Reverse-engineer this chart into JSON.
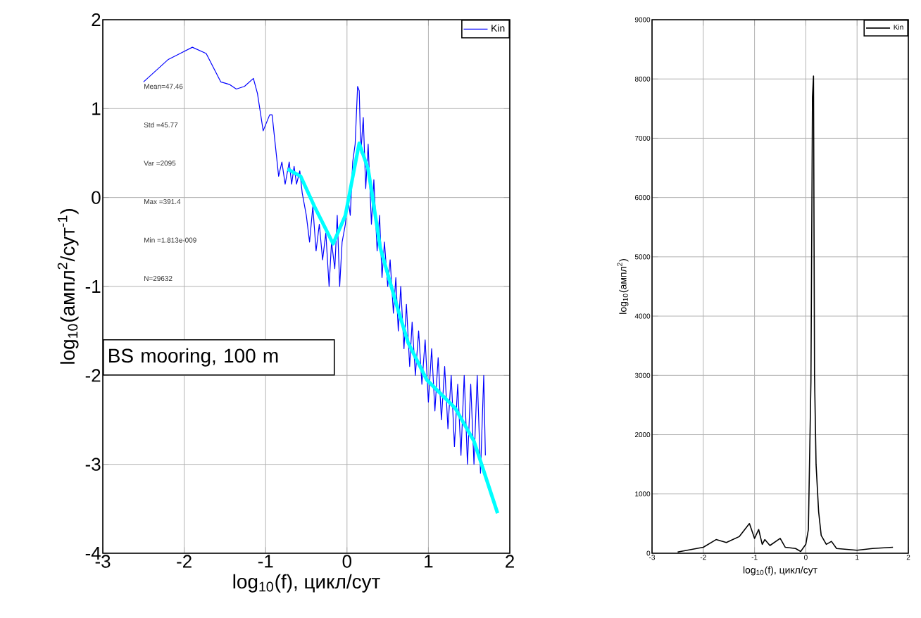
{
  "chart_data": [
    {
      "type": "line",
      "xlabel": "log$_{10}$(f), цикл/сут",
      "ylabel": "log$_{10}$(ампл$^{2}$/сут$^{-1}$)",
      "xlim": [
        -3,
        2
      ],
      "ylim": [
        -4,
        2
      ],
      "xticks": [
        -3,
        -2,
        -1,
        0,
        1,
        2
      ],
      "yticks": [
        -4,
        -3,
        -2,
        -1,
        0,
        1,
        2
      ],
      "grid": true,
      "legend": "top right",
      "annotations": [
        "Mean=47.46",
        "Std =45.77",
        "Var =2095",
        "Max =391.4",
        "Min =1.813e-009",
        "N=29632",
        "BS mooring, 100 m"
      ],
      "series": [
        {
          "name": "Kin",
          "color": "#0000ff",
          "x": [
            -2.5,
            -2.2,
            -1.9,
            -1.73,
            -1.55,
            -1.44,
            -1.36,
            -1.26,
            -1.15,
            -1.1,
            -1.03,
            -0.95,
            -0.92,
            -0.84,
            -0.8,
            -0.76,
            -0.71,
            -0.68,
            -0.65,
            -0.62,
            -0.58,
            -0.55,
            -0.5,
            -0.46,
            -0.42,
            -0.38,
            -0.34,
            -0.3,
            -0.26,
            -0.22,
            -0.19,
            -0.15,
            -0.12,
            -0.09,
            -0.06,
            -0.02,
            0.01,
            0.04,
            0.07,
            0.1,
            0.13,
            0.15,
            0.17,
            0.2,
            0.23,
            0.26,
            0.3,
            0.33,
            0.37,
            0.4,
            0.43,
            0.46,
            0.5,
            0.53,
            0.57,
            0.6,
            0.63,
            0.66,
            0.7,
            0.73,
            0.77,
            0.8,
            0.84,
            0.88,
            0.92,
            0.96,
            1.0,
            1.04,
            1.08,
            1.12,
            1.16,
            1.2,
            1.24,
            1.28,
            1.32,
            1.36,
            1.4,
            1.44,
            1.48,
            1.52,
            1.56,
            1.6,
            1.64,
            1.68,
            1.7
          ],
          "values": [
            1.3,
            1.55,
            1.69,
            1.62,
            1.3,
            1.27,
            1.22,
            1.25,
            1.34,
            1.17,
            0.75,
            0.93,
            0.93,
            0.24,
            0.4,
            0.15,
            0.4,
            0.15,
            0.35,
            0.15,
            0.3,
            0.05,
            -0.2,
            -0.5,
            -0.1,
            -0.6,
            -0.3,
            -0.7,
            -0.4,
            -1.0,
            -0.5,
            -0.8,
            -0.2,
            -1.0,
            -0.5,
            -0.3,
            0.0,
            -0.2,
            0.4,
            0.6,
            1.25,
            1.2,
            0.5,
            0.9,
            0.1,
            0.6,
            -0.3,
            0.2,
            -0.6,
            -0.2,
            -0.9,
            -0.5,
            -1.0,
            -0.7,
            -1.3,
            -0.9,
            -1.5,
            -1.0,
            -1.7,
            -1.2,
            -1.9,
            -1.4,
            -2.0,
            -1.5,
            -2.1,
            -1.6,
            -2.3,
            -1.7,
            -2.4,
            -1.8,
            -2.5,
            -1.9,
            -2.6,
            -2.0,
            -2.8,
            -2.1,
            -2.9,
            -2.0,
            -3.0,
            -2.1,
            -3.0,
            -2.0,
            -3.1,
            -2.0,
            -2.9
          ]
        },
        {
          "color": "#00ffff",
          "x": [
            -0.73,
            -0.57,
            -0.4,
            -0.17,
            -0.02,
            0.15,
            0.26,
            0.41,
            0.61,
            0.75,
            0.98,
            1.33,
            1.56,
            1.85
          ],
          "values": [
            0.32,
            0.24,
            -0.1,
            -0.52,
            -0.2,
            0.61,
            0.32,
            -0.57,
            -1.21,
            -1.63,
            -2.05,
            -2.37,
            -2.74,
            -3.55
          ]
        }
      ]
    },
    {
      "type": "line",
      "xlabel": "log$_{10}$(f), цикл/сут",
      "ylabel": "log$_{10}$(ампл$^{2}$)",
      "xlim": [
        -3,
        2
      ],
      "ylim": [
        0,
        9000
      ],
      "xticks": [
        -3,
        -2,
        -1,
        0,
        1,
        2
      ],
      "yticks": [
        0,
        1000,
        2000,
        3000,
        4000,
        5000,
        6000,
        7000,
        8000,
        9000
      ],
      "grid": true,
      "legend": "top right",
      "series": [
        {
          "name": "Kin",
          "color": "#000000",
          "x": [
            -2.5,
            -2.0,
            -1.75,
            -1.55,
            -1.3,
            -1.1,
            -1.0,
            -0.92,
            -0.85,
            -0.8,
            -0.7,
            -0.5,
            -0.4,
            -0.2,
            -0.1,
            0.0,
            0.05,
            0.1,
            0.13,
            0.15,
            0.17,
            0.2,
            0.25,
            0.3,
            0.4,
            0.5,
            0.6,
            1.0,
            1.3,
            1.7
          ],
          "values": [
            20,
            100,
            230,
            180,
            280,
            500,
            250,
            400,
            150,
            230,
            130,
            250,
            100,
            80,
            30,
            150,
            400,
            2900,
            7700,
            8050,
            3000,
            1500,
            700,
            300,
            150,
            200,
            80,
            50,
            80,
            100
          ]
        }
      ]
    }
  ]
}
